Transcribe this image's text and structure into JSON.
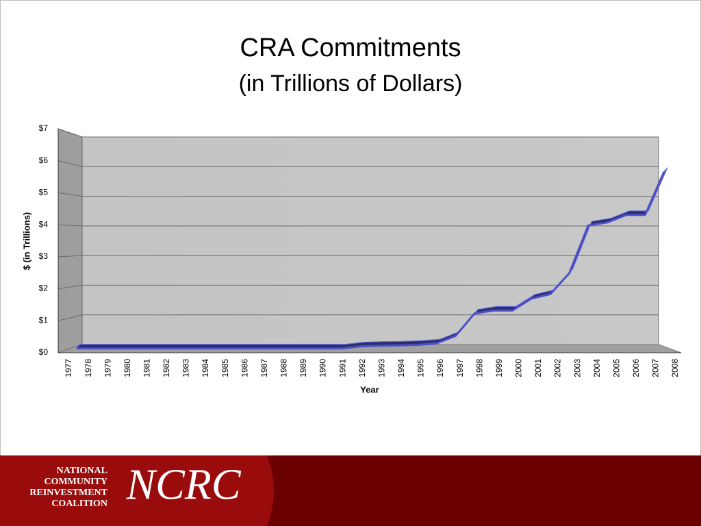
{
  "chart_data": {
    "type": "line",
    "title": "CRA Commitments",
    "subtitle": "(in Trillions of Dollars)",
    "x_label": "Year",
    "y_label": "$ (in Trillions)",
    "categories": [
      "1977",
      "1978",
      "1979",
      "1980",
      "1981",
      "1982",
      "1983",
      "1984",
      "1985",
      "1986",
      "1987",
      "1988",
      "1989",
      "1990",
      "1991",
      "1992",
      "1993",
      "1994",
      "1995",
      "1996",
      "1997",
      "1998",
      "1999",
      "2000",
      "2001",
      "2002",
      "2003",
      "2004",
      "2005",
      "2006",
      "2007",
      "2008"
    ],
    "series": [
      {
        "name": "CRA Commitments",
        "color": "#4b4fc8",
        "values": [
          0.03,
          0.03,
          0.03,
          0.03,
          0.03,
          0.03,
          0.03,
          0.03,
          0.03,
          0.03,
          0.03,
          0.03,
          0.03,
          0.03,
          0.03,
          0.1,
          0.12,
          0.13,
          0.15,
          0.2,
          0.45,
          1.2,
          1.3,
          1.3,
          1.7,
          1.85,
          2.55,
          4.15,
          4.25,
          4.5,
          4.5,
          5.95
        ]
      }
    ],
    "ylim": [
      0,
      7
    ],
    "yticks": [
      {
        "value": 0,
        "label": "$0"
      },
      {
        "value": 1,
        "label": "$1"
      },
      {
        "value": 2,
        "label": "$2"
      },
      {
        "value": 3,
        "label": "$3"
      },
      {
        "value": 4,
        "label": "$4"
      },
      {
        "value": 5,
        "label": "$5"
      },
      {
        "value": 6,
        "label": "$6"
      },
      {
        "value": 7,
        "label": "$7"
      }
    ],
    "grid": true
  },
  "footer": {
    "org_lines": [
      "NATIONAL",
      "COMMUNITY",
      "REINVESTMENT",
      "COALITION"
    ],
    "logo": "NCRC"
  }
}
